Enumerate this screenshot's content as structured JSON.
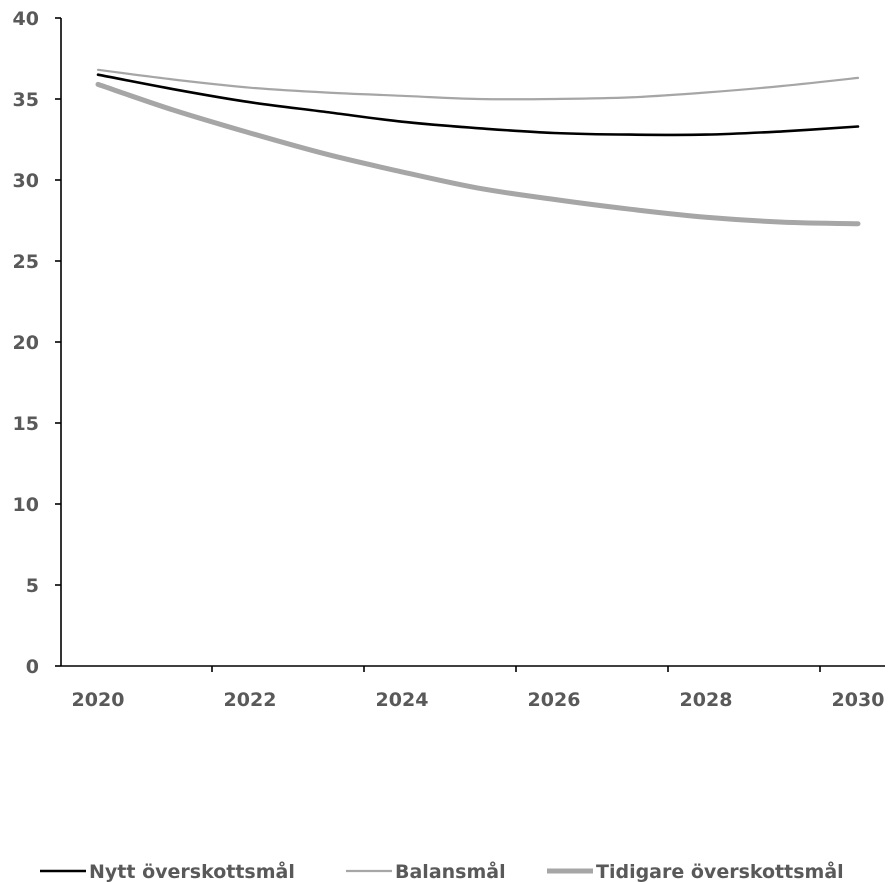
{
  "chart_data": {
    "type": "line",
    "title": "",
    "xlabel": "",
    "ylabel": "",
    "x": [
      2020,
      2021,
      2022,
      2023,
      2024,
      2025,
      2026,
      2027,
      2028,
      2029,
      2030
    ],
    "x_tick_labels": [
      "2020",
      "2022",
      "2024",
      "2026",
      "2028",
      "2030"
    ],
    "y_tick_labels": [
      "0",
      "5",
      "10",
      "15",
      "20",
      "25",
      "30",
      "35",
      "40"
    ],
    "ylim": [
      0,
      40
    ],
    "grid": false,
    "legend_position": "bottom",
    "series": [
      {
        "name": "Nytt överskottsmål",
        "color": "#000000",
        "style": "thin",
        "values": [
          36.5,
          35.6,
          34.8,
          34.2,
          33.6,
          33.2,
          32.9,
          32.8,
          32.8,
          33.0,
          33.3
        ]
      },
      {
        "name": "Balansmål",
        "color": "#a6a6a6",
        "style": "thin",
        "values": [
          36.8,
          36.2,
          35.7,
          35.4,
          35.2,
          35.0,
          35.0,
          35.1,
          35.4,
          35.8,
          36.3
        ]
      },
      {
        "name": "Tidigare överskottsmål",
        "color": "#a6a6a6",
        "style": "thick",
        "values": [
          35.9,
          34.3,
          32.9,
          31.6,
          30.5,
          29.5,
          28.8,
          28.2,
          27.7,
          27.4,
          27.3
        ]
      }
    ]
  }
}
